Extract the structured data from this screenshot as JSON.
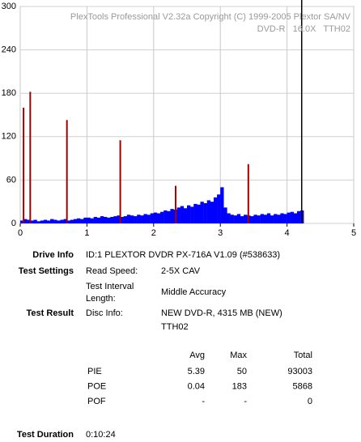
{
  "chart_data": {
    "type": "bar",
    "watermark": [
      "PlexTools Professional V2.32a Copyright (C) 1999-2005 Plextor SA/NV",
      "DVD-R   16.0X   TTH02"
    ],
    "xlim": [
      0,
      5
    ],
    "xticks": [
      0,
      1,
      2,
      3,
      4,
      5
    ],
    "ylim": [
      0,
      300
    ],
    "yticks": [
      0,
      60,
      120,
      180,
      240,
      300
    ],
    "grid": true,
    "end_marker": 4.22,
    "series": [
      {
        "name": "PIE",
        "color": "#0000ff",
        "x": [
          0,
          0.05,
          0.1,
          0.15,
          0.2,
          0.25,
          0.3,
          0.35,
          0.4,
          0.45,
          0.5,
          0.55,
          0.6,
          0.65,
          0.7,
          0.75,
          0.8,
          0.85,
          0.9,
          0.95,
          1,
          1.05,
          1.1,
          1.15,
          1.2,
          1.25,
          1.3,
          1.35,
          1.4,
          1.45,
          1.5,
          1.55,
          1.6,
          1.65,
          1.7,
          1.75,
          1.8,
          1.85,
          1.9,
          1.95,
          2,
          2.05,
          2.1,
          2.15,
          2.2,
          2.25,
          2.3,
          2.35,
          2.4,
          2.45,
          2.5,
          2.55,
          2.6,
          2.65,
          2.7,
          2.75,
          2.8,
          2.85,
          2.9,
          2.95,
          3,
          3.05,
          3.1,
          3.15,
          3.2,
          3.25,
          3.3,
          3.35,
          3.4,
          3.45,
          3.5,
          3.55,
          3.6,
          3.65,
          3.7,
          3.75,
          3.8,
          3.85,
          3.9,
          3.95,
          4,
          4.05,
          4.1,
          4.15,
          4.2
        ],
        "values": [
          4,
          6,
          5,
          4,
          5,
          3,
          4,
          5,
          4,
          6,
          5,
          4,
          5,
          6,
          4,
          5,
          6,
          7,
          6,
          8,
          8,
          7,
          9,
          8,
          10,
          9,
          8,
          9,
          10,
          11,
          9,
          10,
          12,
          11,
          10,
          12,
          11,
          13,
          12,
          14,
          15,
          14,
          16,
          18,
          17,
          20,
          19,
          22,
          24,
          21,
          25,
          23,
          27,
          26,
          30,
          28,
          32,
          30,
          36,
          40,
          50,
          22,
          14,
          12,
          11,
          13,
          10,
          12,
          11,
          10,
          12,
          11,
          13,
          12,
          14,
          11,
          13,
          12,
          14,
          13,
          15,
          16,
          14,
          17,
          18
        ]
      },
      {
        "name": "POE",
        "color": "#a00000",
        "x": [
          0.05,
          0.15,
          0.7,
          1.5,
          2.33,
          3.42
        ],
        "values": [
          160,
          182,
          143,
          115,
          52,
          82
        ]
      }
    ]
  },
  "report": {
    "drive_info": {
      "label": "Drive Info",
      "value": "ID:1 PLEXTOR DVDR PX-716A V1.09 (#538633)"
    },
    "test_settings": {
      "label": "Test Settings",
      "read_speed": {
        "label": "Read Speed:",
        "value": "2-5X CAV"
      },
      "interval": {
        "label": [
          "Test Interval",
          "Length:"
        ],
        "value": "Middle Accuracy"
      }
    },
    "test_result": {
      "label": "Test Result",
      "disc_info": {
        "label": "Disc Info:",
        "value": [
          "NEW DVD-R, 4315 MB (NEW)",
          "TTH02"
        ]
      }
    },
    "stats": {
      "header": [
        "Avg",
        "Max",
        "Total"
      ],
      "rows": [
        [
          "PIE",
          "5.39",
          "50",
          "93003"
        ],
        [
          "POE",
          "0.04",
          "183",
          "5868"
        ],
        [
          "POF",
          "-",
          "-",
          "0"
        ]
      ]
    },
    "test_duration": {
      "label": "Test Duration",
      "value": "0:10:24"
    }
  }
}
